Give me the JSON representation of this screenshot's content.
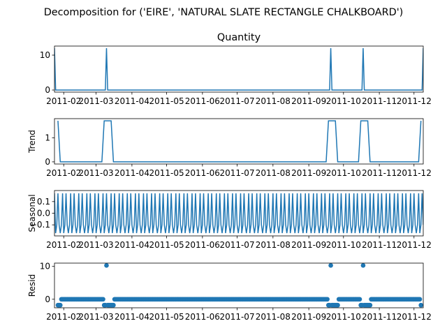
{
  "chart_data": {
    "type": "line",
    "suptitle": "Decomposition for ('EIRE', 'NATURAL SLATE RECTANGLE CHALKBOARD')",
    "color": "#1f77b4",
    "x_range": [
      "2011-01-24",
      "2011-12-09"
    ],
    "x_ticks": [
      "2011-02",
      "2011-03",
      "2011-04",
      "2011-05",
      "2011-06",
      "2011-07",
      "2011-08",
      "2011-09",
      "2011-10",
      "2011-11",
      "2011-12"
    ],
    "panels": [
      {
        "id": "observed",
        "title": "Quantity",
        "ylabel": "",
        "kind": "line",
        "ylim": [
          -0.6,
          12.6
        ],
        "y_ticks": [
          0,
          10
        ],
        "y_tick_labels": [
          "0",
          "10"
        ],
        "baseline": 0,
        "events": [
          {
            "x": "2011-01-24",
            "y": 12
          },
          {
            "x": "2011-03-10",
            "y": 12
          },
          {
            "x": "2011-09-20",
            "y": 12
          },
          {
            "x": "2011-10-18",
            "y": 12
          },
          {
            "x": "2011-12-09",
            "y": 12
          }
        ]
      },
      {
        "id": "trend",
        "title": "",
        "ylabel": "Trend",
        "kind": "line",
        "ylim": [
          -0.09,
          1.8
        ],
        "y_ticks": [
          0,
          1
        ],
        "y_tick_labels": [
          "0",
          "1"
        ],
        "points": [
          {
            "x": "2011-01-27",
            "y": 1.71
          },
          {
            "x": "2011-01-29",
            "y": 0
          },
          {
            "x": "2011-03-06",
            "y": 0
          },
          {
            "x": "2011-03-08",
            "y": 1.71
          },
          {
            "x": "2011-03-14",
            "y": 1.71
          },
          {
            "x": "2011-03-16",
            "y": 0
          },
          {
            "x": "2011-09-16",
            "y": 0
          },
          {
            "x": "2011-09-18",
            "y": 1.71
          },
          {
            "x": "2011-09-24",
            "y": 1.71
          },
          {
            "x": "2011-09-26",
            "y": 0
          },
          {
            "x": "2011-10-14",
            "y": 0
          },
          {
            "x": "2011-10-16",
            "y": 1.71
          },
          {
            "x": "2011-10-22",
            "y": 1.71
          },
          {
            "x": "2011-10-24",
            "y": 0
          },
          {
            "x": "2011-12-05",
            "y": 0
          },
          {
            "x": "2011-12-07",
            "y": 1.71
          }
        ]
      },
      {
        "id": "seasonal",
        "title": "",
        "ylabel": "Seasonal",
        "kind": "line",
        "ylim": [
          -0.195,
          0.195
        ],
        "y_ticks": [
          0.1,
          0.0,
          -0.1
        ],
        "y_tick_labels": [
          "0.1",
          "0.0",
          "−0.1"
        ],
        "period_pattern": [
          0.171,
          -0.171,
          -0.1,
          0.171,
          -0.1,
          -0.171,
          -0.1
        ],
        "start": "2011-01-24"
      },
      {
        "id": "resid",
        "title": "",
        "ylabel": "Resid",
        "kind": "scatter",
        "ylim": [
          -2.6,
          11.0
        ],
        "y_ticks": [
          0,
          10
        ],
        "y_tick_labels": [
          "0",
          "10"
        ],
        "baseline": 0,
        "start": "2011-01-27",
        "end": "2011-12-07",
        "spikes": [
          {
            "x": "2011-03-10",
            "y": 10.3
          },
          {
            "x": "2011-09-20",
            "y": 10.3
          },
          {
            "x": "2011-10-18",
            "y": 10.3
          }
        ],
        "dips": [
          {
            "from": "2011-01-27",
            "to": "2011-01-29",
            "y": -1.8
          },
          {
            "from": "2011-03-08",
            "to": "2011-03-16",
            "y": -1.8
          },
          {
            "from": "2011-09-18",
            "to": "2011-09-26",
            "y": -1.8
          },
          {
            "from": "2011-10-16",
            "to": "2011-10-24",
            "y": -1.8
          },
          {
            "from": "2011-12-07",
            "to": "2011-12-07",
            "y": -1.8
          }
        ]
      }
    ]
  }
}
